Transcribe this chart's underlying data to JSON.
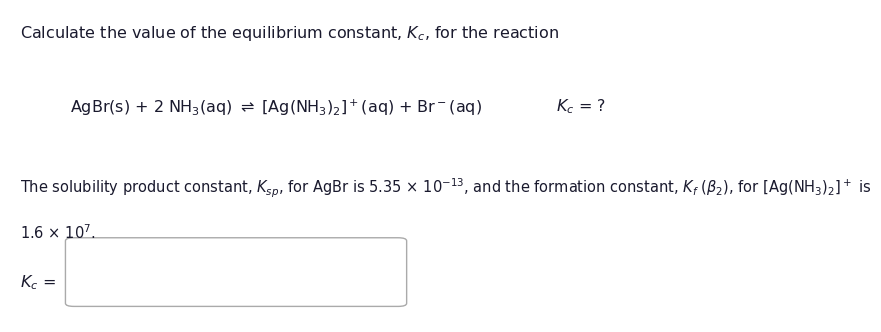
{
  "bg_color": "#ffffff",
  "text_color": "#1a1a2e",
  "font_size_title": 11.5,
  "font_size_reaction": 11.5,
  "font_size_desc": 10.5,
  "font_size_answer": 11.5,
  "title_line": "Calculate the value of the equilibrium constant, $K_c$, for the reaction",
  "reaction_left": "AgBr(s) + 2 NH$_3$(aq) $\\rightleftharpoons$ [Ag(NH$_3$)$_2$]$^+$(aq) + Br$^-$(aq)",
  "reaction_right": "$K_c$ = ?",
  "desc_line1": "The solubility product constant, $K_{sp}$, for AgBr is 5.35 × 10$^{-13}$, and the formation constant, $K_f$ ($\\beta_2$), for [Ag(NH$_3$)$_2$]$^+$ is",
  "desc_line2": "1.6 × 10$^7$.",
  "answer_label": "$K_c$ =",
  "box_border_color": "#aaaaaa",
  "box_face_color": "#ffffff"
}
